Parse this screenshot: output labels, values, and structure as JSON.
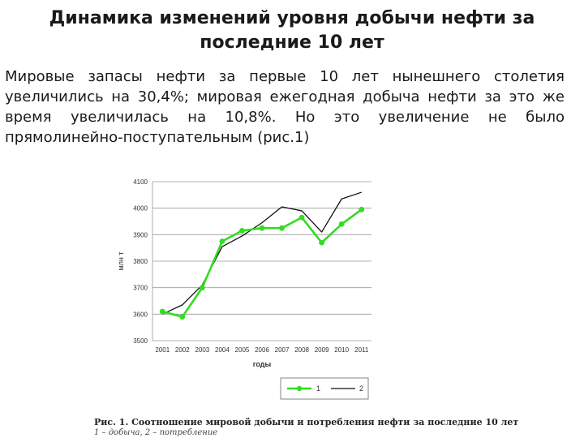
{
  "slide": {
    "title": "Динамика изменений уровня добычи нефти за последние 10 лет",
    "paragraph": "Мировые запасы нефти за первые 10 лет нынешнего столетия увеличились на 30,4%; мировая ежегодная добыча нефти за это же время увеличилась на 10,8%. Но это увеличение не было прямолинейно-поступательным (рис.1)",
    "caption": "Рис. 1. Соотношение мировой добычи и потребления нефти за последние 10 лет",
    "subcaption": "1 – добыча, 2 – потребление"
  },
  "chart_data": {
    "type": "line",
    "categories": [
      "2001",
      "2002",
      "2003",
      "2004",
      "2005",
      "2006",
      "2007",
      "2008",
      "2009",
      "2010",
      "2011"
    ],
    "ylabel": "млн т",
    "xlabel": "годы",
    "ylim": [
      3500,
      4100
    ],
    "yticks": [
      "3500",
      "3600",
      "3700",
      "3800",
      "3900",
      "4000",
      "4100"
    ],
    "grid": true,
    "legend_position": "bottom",
    "series": [
      {
        "name": "1",
        "color": "#33dd22",
        "marker": "circle",
        "values": [
          3610,
          3590,
          3700,
          3875,
          3915,
          3925,
          3925,
          3965,
          3870,
          3940,
          3995
        ]
      },
      {
        "name": "2",
        "color": "#111111",
        "marker": "none",
        "values": [
          3600,
          3635,
          3710,
          3855,
          3895,
          3945,
          4005,
          3990,
          3910,
          4035,
          4060
        ]
      }
    ]
  }
}
